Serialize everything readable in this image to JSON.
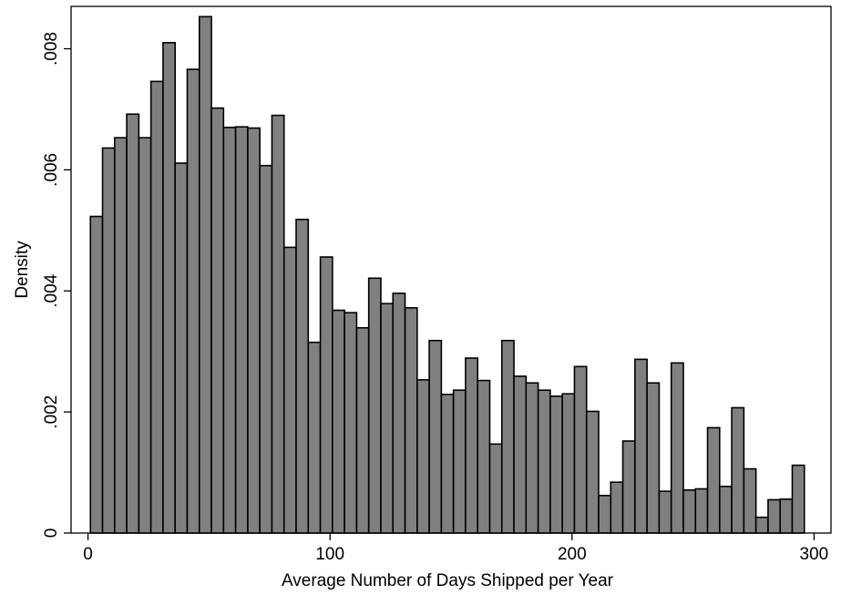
{
  "chart_data": {
    "type": "bar",
    "subtype": "histogram",
    "xlabel": "Average Number of Days Shipped per Year",
    "ylabel": "Density",
    "xlim": [
      -7,
      307
    ],
    "ylim": [
      0,
      0.0087
    ],
    "xticks": [
      0,
      100,
      200,
      300
    ],
    "xtick_labels": [
      "0",
      "100",
      "200",
      "300"
    ],
    "yticks": [
      0,
      0.002,
      0.004,
      0.006,
      0.008
    ],
    "ytick_labels": [
      "0",
      ".002",
      ".004",
      ".006",
      ".008"
    ],
    "grid": false,
    "legend": "none",
    "bin_start": 1,
    "bin_width": 5,
    "values": [
      0.00523,
      0.00636,
      0.00653,
      0.00692,
      0.00653,
      0.00746,
      0.0081,
      0.00611,
      0.00766,
      0.00853,
      0.00702,
      0.0067,
      0.00671,
      0.00669,
      0.00607,
      0.0069,
      0.00472,
      0.00518,
      0.00315,
      0.00456,
      0.00368,
      0.00364,
      0.00339,
      0.00421,
      0.00379,
      0.00396,
      0.00372,
      0.00253,
      0.00318,
      0.00229,
      0.00236,
      0.00289,
      0.00252,
      0.00147,
      0.00318,
      0.00259,
      0.00248,
      0.00236,
      0.00226,
      0.0023,
      0.00275,
      0.00201,
      0.00062,
      0.00084,
      0.00152,
      0.00287,
      0.00248,
      0.00069,
      0.00281,
      0.00071,
      0.00073,
      0.00174,
      0.00077,
      0.00207,
      0.00106,
      0.00026,
      0.00055,
      0.00056,
      0.00112
    ],
    "colors": {
      "bar_fill": "#808080",
      "bar_edge": "#000000",
      "background": "#ffffff"
    }
  }
}
